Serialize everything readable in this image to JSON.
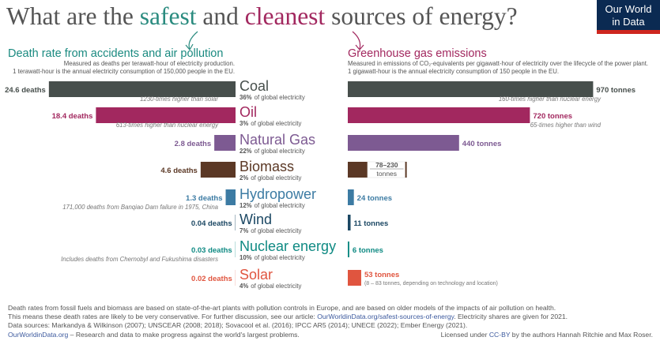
{
  "header": {
    "title": [
      "What are the ",
      "safest",
      " and ",
      "cleanest",
      " sources of energy?"
    ],
    "logo": [
      "Our World",
      "in Data"
    ]
  },
  "chart_data": [
    {
      "type": "bar",
      "orientation": "horizontal",
      "direction": "left",
      "title": "Death rate from accidents and air pollution",
      "subtitle": [
        "Measured as deaths per terawatt-hour of electricity production.",
        "1 terawatt-hour is the annual electricity consumption of 150,000 people in the EU."
      ],
      "categories": [
        "Coal",
        "Oil",
        "Natural Gas",
        "Biomass",
        "Hydropower",
        "Wind",
        "Nuclear energy",
        "Solar"
      ],
      "shares": [
        "36%",
        "3%",
        "22%",
        "2%",
        "12%",
        "7%",
        "10%",
        "4%"
      ],
      "share_text": "of global electricity",
      "values": [
        24.6,
        18.4,
        2.8,
        4.6,
        1.3,
        0.04,
        0.03,
        0.02
      ],
      "value_labels": [
        "24.6 deaths",
        "18.4 deaths",
        "2.8 deaths",
        "4.6 deaths",
        "1.3 deaths",
        "0.04 deaths",
        "0.03 deaths",
        "0.02 deaths"
      ],
      "colors": [
        "#474f4c",
        "#a2285f",
        "#7d5a92",
        "#5b3825",
        "#3c7ba3",
        "#1b4763",
        "#0f8a83",
        "#e0553f"
      ],
      "xlim": [
        0,
        25
      ],
      "annotations": [
        {
          "index": 0,
          "text": "1230-times higher than solar"
        },
        {
          "index": 1,
          "text": "613-times higher than nuclear energy"
        },
        {
          "index": 4,
          "text": "171,000 deaths from Banqiao Dam failure in 1975, China"
        },
        {
          "index": 6,
          "text": "Includes deaths from Chernobyl and Fukushima disasters"
        }
      ]
    },
    {
      "type": "bar",
      "orientation": "horizontal",
      "direction": "right",
      "title": "Greenhouse gas emissions",
      "subtitle": [
        "Measured in emissions of CO₂-equivalents per gigawatt-hour of electricity over the lifecycle of the power plant.",
        "1 gigawatt-hour is the annual electricity consumption of 150 people in the EU."
      ],
      "values": [
        970,
        720,
        440,
        null,
        24,
        11,
        6,
        53
      ],
      "value_labels": [
        "970 tonnes",
        "720 tonnes",
        "440 tonnes",
        null,
        "24 tonnes",
        "11 tonnes",
        "6 tonnes",
        "53 tonnes"
      ],
      "range": {
        "index": 3,
        "low": 78,
        "high": 230,
        "label": "78–230",
        "unit": "tonnes"
      },
      "colors": [
        "#474f4c",
        "#a2285f",
        "#7d5a92",
        "#5b3825",
        "#3c7ba3",
        "#1b4763",
        "#0f8a83",
        "#e0553f"
      ],
      "xlim": [
        0,
        1000
      ],
      "annotations": [
        {
          "index": 0,
          "text": "160-times higher than nuclear energy"
        },
        {
          "index": 1,
          "text": "65-times higher than wind"
        },
        {
          "index": 7,
          "text": "(8 – 83 tonnes, depending on technology and location)"
        }
      ]
    }
  ],
  "footer": {
    "line1": "Death rates from fossil fuels and biomass are based on state-of-the-art plants with pollution controls in Europe, and are based on older models of the impacts of air pollution on health.",
    "line2": [
      "This means these death rates are likely to be very conservative. For further discussion, see our article: ",
      "OurWorldinData.org/safest-sources-of-energy",
      ". Electricity shares are given for 2021."
    ],
    "line3": "Data sources: Markandya & Wilkinson (2007); UNSCEAR (2008; 2018); Sovacool et al. (2016); IPCC AR5 (2014); UNECE (2022); Ember Energy (2021).",
    "line4": [
      "OurWorldinData.org",
      " – Research and data to make progress against the world's largest problems."
    ],
    "license": [
      "Licensed under ",
      "CC-BY",
      " by the authors Hannah Ritchie and Max Roser."
    ]
  }
}
